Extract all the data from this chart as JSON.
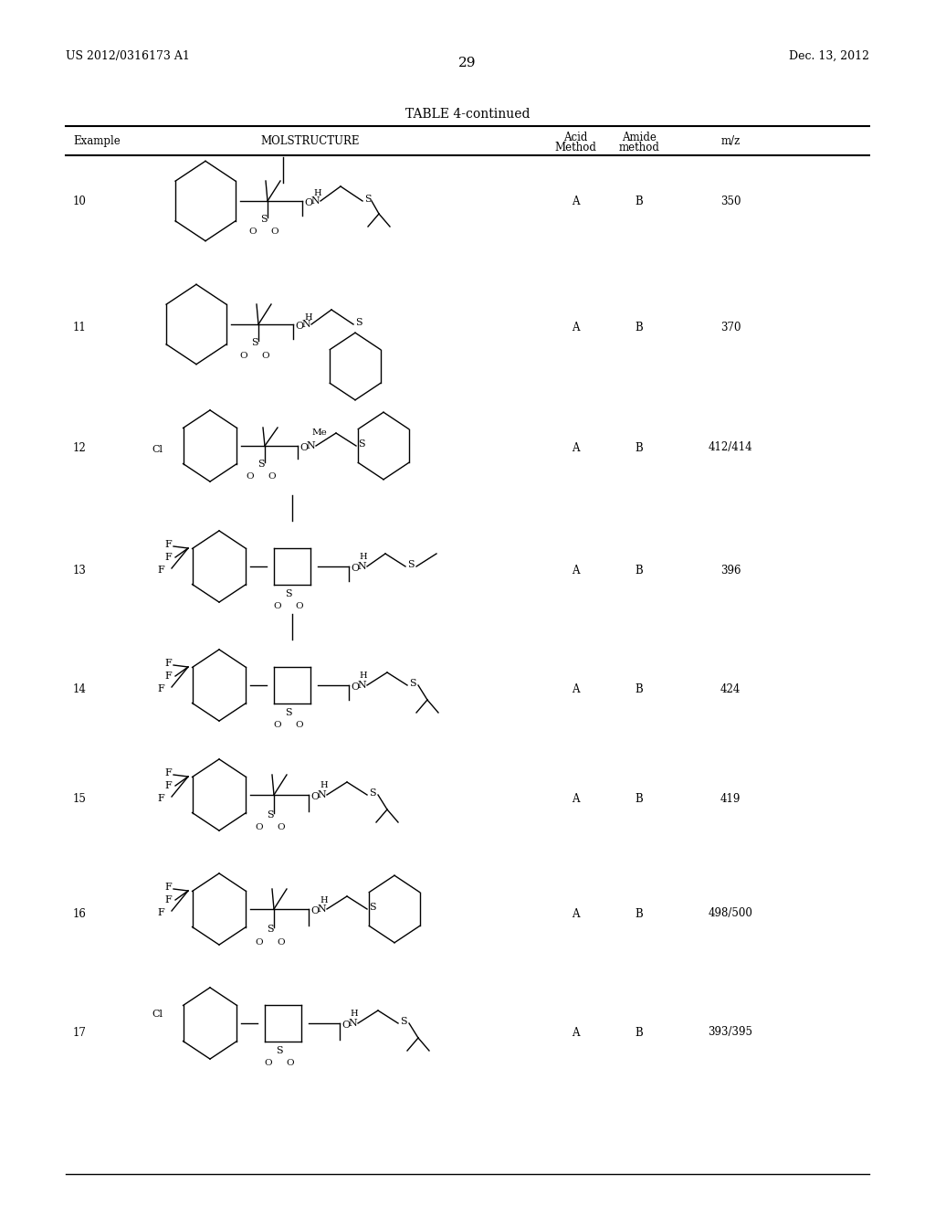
{
  "page_number": "29",
  "patent_number": "US 2012/0316173 A1",
  "patent_date": "Dec. 13, 2012",
  "table_title": "TABLE 4-continued",
  "background_color": "#ffffff",
  "text_color": "#000000",
  "rows": [
    {
      "example": "10",
      "acid": "A",
      "amide": "B",
      "mz": "350"
    },
    {
      "example": "11",
      "acid": "A",
      "amide": "B",
      "mz": "370"
    },
    {
      "example": "12",
      "acid": "A",
      "amide": "B",
      "mz": "412/414"
    },
    {
      "example": "13",
      "acid": "A",
      "amide": "B",
      "mz": "396"
    },
    {
      "example": "14",
      "acid": "A",
      "amide": "B",
      "mz": "424"
    },
    {
      "example": "15",
      "acid": "A",
      "amide": "B",
      "mz": "419"
    },
    {
      "example": "16",
      "acid": "A",
      "amide": "B",
      "mz": "498/500"
    },
    {
      "example": "17",
      "acid": "A",
      "amide": "B",
      "mz": "393/395"
    }
  ]
}
